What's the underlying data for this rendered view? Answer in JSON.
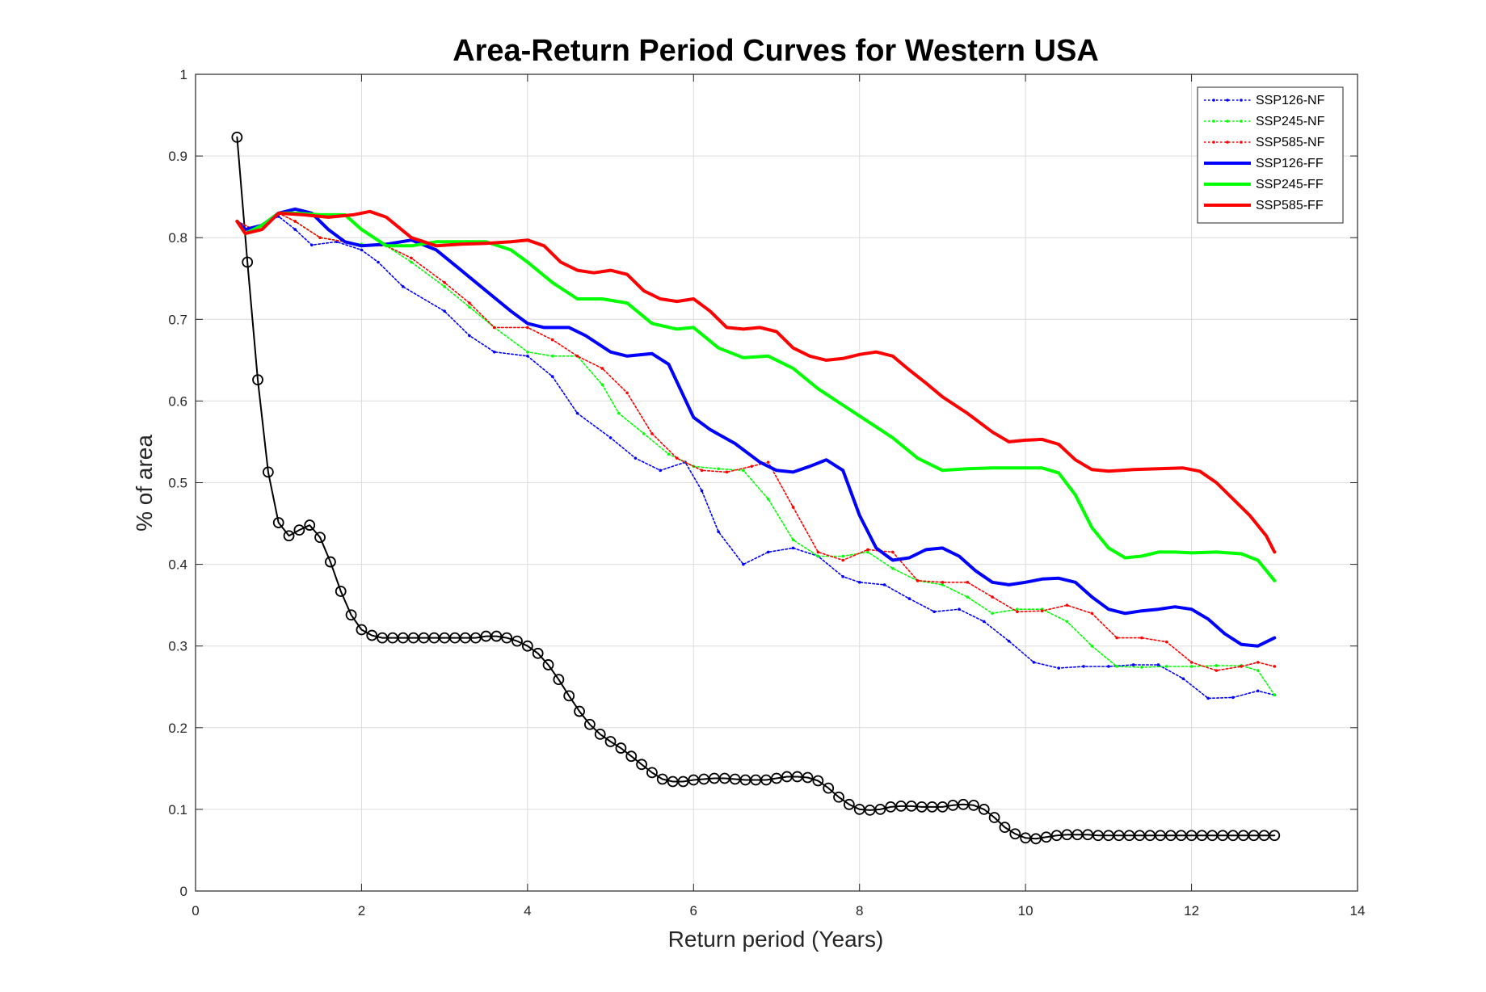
{
  "chart_data": {
    "type": "line",
    "title": "Area-Return Period Curves for Western USA",
    "xlabel": "Return period (Years)",
    "ylabel": "% of area",
    "xlim": [
      0,
      14
    ],
    "ylim": [
      0,
      1
    ],
    "xticks": [
      0,
      2,
      4,
      6,
      8,
      10,
      12,
      14
    ],
    "yticks": [
      0,
      0.1,
      0.2,
      0.3,
      0.4,
      0.5,
      0.6,
      0.7,
      0.8,
      0.9,
      1
    ],
    "xtick_labels": [
      "0",
      "2",
      "4",
      "6",
      "8",
      "10",
      "12",
      "14"
    ],
    "ytick_labels": [
      "0",
      "0.1",
      "0.2",
      "0.3",
      "0.4",
      "0.5",
      "0.6",
      "0.7",
      "0.8",
      "0.9",
      "1"
    ],
    "grid": true,
    "legend_position": "top-right",
    "series": [
      {
        "name": "SSP126-NF",
        "color": "#0000ff",
        "style": "dotted",
        "x": [
          0.5,
          0.7,
          1.0,
          1.2,
          1.4,
          1.7,
          2.0,
          2.2,
          2.5,
          3.0,
          3.3,
          3.6,
          4.0,
          4.3,
          4.6,
          5.0,
          5.3,
          5.6,
          5.9,
          6.1,
          6.3,
          6.6,
          6.9,
          7.2,
          7.5,
          7.8,
          8.0,
          8.3,
          8.6,
          8.9,
          9.2,
          9.5,
          9.8,
          10.1,
          10.4,
          10.7,
          11.0,
          11.3,
          11.6,
          11.9,
          12.2,
          12.5,
          12.8,
          13.0
        ],
        "y": [
          0.82,
          0.81,
          0.826,
          0.81,
          0.791,
          0.795,
          0.785,
          0.77,
          0.74,
          0.71,
          0.68,
          0.66,
          0.655,
          0.63,
          0.585,
          0.555,
          0.53,
          0.515,
          0.525,
          0.49,
          0.44,
          0.4,
          0.415,
          0.42,
          0.41,
          0.385,
          0.378,
          0.375,
          0.358,
          0.342,
          0.345,
          0.33,
          0.306,
          0.28,
          0.273,
          0.275,
          0.275,
          0.277,
          0.277,
          0.26,
          0.236,
          0.237,
          0.245,
          0.24
        ]
      },
      {
        "name": "SSP245-NF",
        "color": "#00ff00",
        "style": "dotted",
        "x": [
          0.5,
          0.7,
          1.0,
          1.2,
          1.5,
          1.8,
          2.0,
          2.3,
          2.6,
          3.0,
          3.3,
          3.6,
          4.0,
          4.3,
          4.6,
          4.9,
          5.1,
          5.4,
          5.7,
          6.0,
          6.3,
          6.6,
          6.9,
          7.2,
          7.5,
          7.8,
          8.1,
          8.4,
          8.7,
          9.0,
          9.3,
          9.6,
          9.9,
          10.2,
          10.5,
          10.8,
          11.1,
          11.4,
          11.7,
          12.0,
          12.3,
          12.6,
          12.8,
          13.0
        ],
        "y": [
          0.82,
          0.81,
          0.83,
          0.82,
          0.8,
          0.795,
          0.792,
          0.79,
          0.77,
          0.74,
          0.715,
          0.69,
          0.66,
          0.655,
          0.655,
          0.62,
          0.585,
          0.56,
          0.535,
          0.52,
          0.517,
          0.515,
          0.48,
          0.43,
          0.41,
          0.41,
          0.415,
          0.395,
          0.38,
          0.375,
          0.36,
          0.34,
          0.345,
          0.345,
          0.33,
          0.3,
          0.275,
          0.274,
          0.275,
          0.275,
          0.276,
          0.276,
          0.27,
          0.24
        ]
      },
      {
        "name": "SSP585-NF",
        "color": "#ff0000",
        "style": "dotted",
        "x": [
          0.5,
          0.7,
          1.0,
          1.2,
          1.5,
          1.8,
          2.0,
          2.3,
          2.6,
          3.0,
          3.3,
          3.6,
          4.0,
          4.3,
          4.6,
          4.9,
          5.2,
          5.5,
          5.8,
          6.1,
          6.4,
          6.7,
          6.9,
          7.2,
          7.5,
          7.8,
          8.1,
          8.4,
          8.7,
          9.0,
          9.3,
          9.6,
          9.9,
          10.2,
          10.5,
          10.8,
          11.1,
          11.4,
          11.7,
          12.0,
          12.3,
          12.6,
          12.8,
          13.0
        ],
        "y": [
          0.82,
          0.81,
          0.83,
          0.82,
          0.8,
          0.795,
          0.79,
          0.79,
          0.775,
          0.745,
          0.72,
          0.69,
          0.69,
          0.675,
          0.655,
          0.64,
          0.61,
          0.56,
          0.53,
          0.515,
          0.513,
          0.52,
          0.525,
          0.47,
          0.415,
          0.405,
          0.418,
          0.415,
          0.38,
          0.378,
          0.378,
          0.36,
          0.342,
          0.343,
          0.35,
          0.34,
          0.31,
          0.31,
          0.305,
          0.28,
          0.27,
          0.275,
          0.28,
          0.275
        ]
      },
      {
        "name": "SSP126-FF",
        "color": "#0000ff",
        "style": "solid",
        "x": [
          0.5,
          0.6,
          0.8,
          1.0,
          1.2,
          1.4,
          1.6,
          1.8,
          2.0,
          2.3,
          2.6,
          2.9,
          3.2,
          3.5,
          3.8,
          4.0,
          4.2,
          4.5,
          4.7,
          5.0,
          5.2,
          5.5,
          5.7,
          6.0,
          6.2,
          6.5,
          6.8,
          7.0,
          7.2,
          7.4,
          7.6,
          7.8,
          8.0,
          8.2,
          8.4,
          8.6,
          8.8,
          9.0,
          9.2,
          9.4,
          9.6,
          9.8,
          10.0,
          10.2,
          10.4,
          10.6,
          10.8,
          11.0,
          11.2,
          11.4,
          11.6,
          11.8,
          12.0,
          12.2,
          12.4,
          12.6,
          12.8,
          13.0
        ],
        "y": [
          0.82,
          0.81,
          0.815,
          0.83,
          0.835,
          0.83,
          0.81,
          0.795,
          0.79,
          0.792,
          0.797,
          0.785,
          0.76,
          0.735,
          0.71,
          0.695,
          0.69,
          0.69,
          0.68,
          0.66,
          0.655,
          0.658,
          0.645,
          0.58,
          0.565,
          0.548,
          0.525,
          0.515,
          0.513,
          0.52,
          0.528,
          0.515,
          0.46,
          0.42,
          0.405,
          0.408,
          0.418,
          0.42,
          0.41,
          0.392,
          0.378,
          0.375,
          0.378,
          0.382,
          0.383,
          0.378,
          0.36,
          0.345,
          0.34,
          0.343,
          0.345,
          0.348,
          0.345,
          0.333,
          0.315,
          0.302,
          0.3,
          0.31
        ]
      },
      {
        "name": "SSP245-FF",
        "color": "#00ff00",
        "style": "solid",
        "x": [
          0.5,
          0.6,
          0.8,
          1.0,
          1.2,
          1.5,
          1.8,
          2.0,
          2.3,
          2.6,
          2.9,
          3.2,
          3.5,
          3.8,
          4.0,
          4.3,
          4.6,
          4.9,
          5.2,
          5.5,
          5.8,
          6.0,
          6.3,
          6.6,
          6.9,
          7.2,
          7.5,
          7.8,
          8.1,
          8.4,
          8.7,
          9.0,
          9.3,
          9.6,
          9.9,
          10.2,
          10.4,
          10.6,
          10.8,
          11.0,
          11.2,
          11.4,
          11.6,
          11.8,
          12.0,
          12.3,
          12.6,
          12.8,
          13.0
        ],
        "y": [
          0.82,
          0.805,
          0.815,
          0.83,
          0.83,
          0.828,
          0.828,
          0.81,
          0.79,
          0.79,
          0.795,
          0.795,
          0.795,
          0.785,
          0.77,
          0.745,
          0.725,
          0.725,
          0.72,
          0.695,
          0.688,
          0.69,
          0.665,
          0.653,
          0.655,
          0.64,
          0.615,
          0.595,
          0.575,
          0.555,
          0.53,
          0.515,
          0.517,
          0.518,
          0.518,
          0.518,
          0.512,
          0.485,
          0.445,
          0.42,
          0.408,
          0.41,
          0.415,
          0.415,
          0.414,
          0.415,
          0.413,
          0.405,
          0.38
        ]
      },
      {
        "name": "SSP585-FF",
        "color": "#ff0000",
        "style": "solid",
        "x": [
          0.5,
          0.6,
          0.8,
          1.0,
          1.3,
          1.6,
          1.9,
          2.1,
          2.3,
          2.6,
          2.9,
          3.2,
          3.5,
          3.8,
          4.0,
          4.2,
          4.4,
          4.6,
          4.8,
          5.0,
          5.2,
          5.4,
          5.6,
          5.8,
          6.0,
          6.2,
          6.4,
          6.6,
          6.8,
          7.0,
          7.2,
          7.4,
          7.6,
          7.8,
          8.0,
          8.2,
          8.4,
          8.6,
          8.8,
          9.0,
          9.3,
          9.6,
          9.8,
          10.0,
          10.2,
          10.4,
          10.6,
          10.8,
          11.0,
          11.3,
          11.6,
          11.9,
          12.1,
          12.3,
          12.5,
          12.7,
          12.9,
          13.0
        ],
        "y": [
          0.82,
          0.805,
          0.81,
          0.83,
          0.828,
          0.825,
          0.828,
          0.832,
          0.825,
          0.8,
          0.79,
          0.792,
          0.793,
          0.795,
          0.797,
          0.79,
          0.77,
          0.76,
          0.757,
          0.76,
          0.755,
          0.735,
          0.725,
          0.722,
          0.725,
          0.71,
          0.69,
          0.688,
          0.69,
          0.685,
          0.665,
          0.655,
          0.65,
          0.652,
          0.657,
          0.66,
          0.655,
          0.638,
          0.622,
          0.605,
          0.585,
          0.562,
          0.55,
          0.552,
          0.553,
          0.547,
          0.528,
          0.516,
          0.514,
          0.516,
          0.517,
          0.518,
          0.514,
          0.5,
          0.48,
          0.46,
          0.435,
          0.415
        ]
      },
      {
        "name": "",
        "color": "#000000",
        "style": "solid-circle",
        "x": [
          0.5,
          0.625,
          0.75,
          0.875,
          1.0,
          1.125,
          1.25,
          1.375,
          1.5,
          1.625,
          1.75,
          1.875,
          2.0,
          2.125,
          2.25,
          2.375,
          2.5,
          2.625,
          2.75,
          2.875,
          3.0,
          3.125,
          3.25,
          3.375,
          3.5,
          3.625,
          3.75,
          3.875,
          4.0,
          4.125,
          4.25,
          4.375,
          4.5,
          4.625,
          4.75,
          4.875,
          5.0,
          5.125,
          5.25,
          5.375,
          5.5,
          5.625,
          5.75,
          5.875,
          6.0,
          6.125,
          6.25,
          6.375,
          6.5,
          6.625,
          6.75,
          6.875,
          7.0,
          7.125,
          7.25,
          7.375,
          7.5,
          7.625,
          7.75,
          7.875,
          8.0,
          8.125,
          8.25,
          8.375,
          8.5,
          8.625,
          8.75,
          8.875,
          9.0,
          9.125,
          9.25,
          9.375,
          9.5,
          9.625,
          9.75,
          9.875,
          10.0,
          10.125,
          10.25,
          10.375,
          10.5,
          10.625,
          10.75,
          10.875,
          11.0,
          11.125,
          11.25,
          11.375,
          11.5,
          11.625,
          11.75,
          11.875,
          12.0,
          12.125,
          12.25,
          12.375,
          12.5,
          12.625,
          12.75,
          12.875,
          13.0
        ],
        "y": [
          0.923,
          0.77,
          0.626,
          0.513,
          0.451,
          0.435,
          0.442,
          0.448,
          0.433,
          0.403,
          0.367,
          0.338,
          0.32,
          0.313,
          0.31,
          0.31,
          0.31,
          0.31,
          0.31,
          0.31,
          0.31,
          0.31,
          0.31,
          0.31,
          0.312,
          0.312,
          0.31,
          0.306,
          0.3,
          0.291,
          0.277,
          0.259,
          0.239,
          0.22,
          0.204,
          0.192,
          0.183,
          0.175,
          0.165,
          0.155,
          0.145,
          0.137,
          0.134,
          0.134,
          0.136,
          0.137,
          0.138,
          0.138,
          0.137,
          0.136,
          0.136,
          0.136,
          0.138,
          0.14,
          0.14,
          0.139,
          0.135,
          0.126,
          0.115,
          0.106,
          0.1,
          0.099,
          0.1,
          0.103,
          0.104,
          0.104,
          0.103,
          0.103,
          0.103,
          0.105,
          0.106,
          0.105,
          0.1,
          0.09,
          0.078,
          0.07,
          0.065,
          0.064,
          0.066,
          0.068,
          0.069,
          0.069,
          0.069,
          0.068,
          0.068,
          0.068,
          0.068,
          0.068,
          0.068,
          0.068,
          0.068,
          0.068,
          0.068,
          0.068,
          0.068,
          0.068,
          0.068,
          0.068,
          0.068,
          0.068,
          0.068
        ]
      }
    ]
  }
}
